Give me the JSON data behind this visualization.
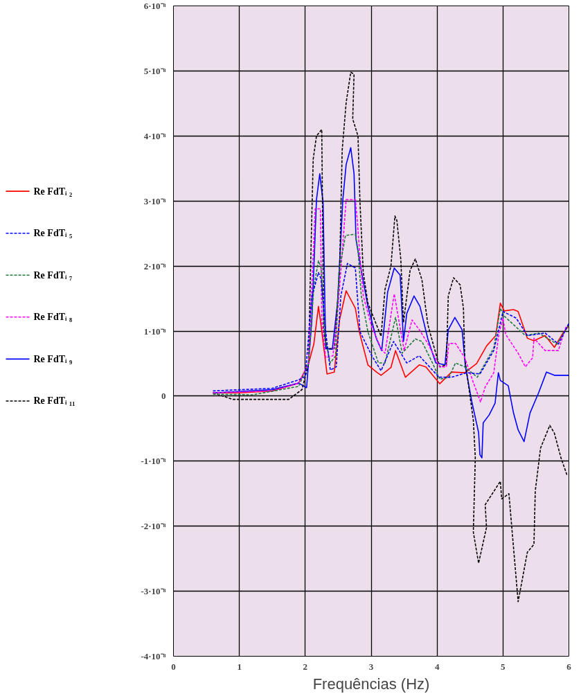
{
  "chart_data": {
    "type": "line",
    "xlabel": "Frequências (Hz)",
    "xlim": [
      0,
      6
    ],
    "xticks": [
      0,
      1,
      2,
      3,
      4,
      5,
      6
    ],
    "ylim": [
      -4e-08,
      6e-08
    ],
    "yticks": [
      {
        "value": 6e-08,
        "label": "6·10⁻⁸"
      },
      {
        "value": 5e-08,
        "label": "5·10⁻⁸"
      },
      {
        "value": 4e-08,
        "label": "4·10⁻⁸"
      },
      {
        "value": 3e-08,
        "label": "3·10⁻⁸"
      },
      {
        "value": 2e-08,
        "label": "2·10⁻⁸"
      },
      {
        "value": 1e-08,
        "label": "1·10⁻⁸"
      },
      {
        "value": 0,
        "label": "0"
      },
      {
        "value": -1e-08,
        "label": "-1·10⁻⁸"
      },
      {
        "value": -2e-08,
        "label": "-2·10⁻⁸"
      },
      {
        "value": -3e-08,
        "label": "-3·10⁻⁸"
      },
      {
        "value": -4e-08,
        "label": "-4·10⁻⁸"
      }
    ],
    "grid": true,
    "legend": "left",
    "marker": "none",
    "series": [
      {
        "name": "Re FdTᵢ ₂",
        "color": "#ff0000",
        "line_style": "solid",
        "x": [
          0.6,
          1.0,
          1.5,
          1.9,
          2.05,
          2.13,
          2.2,
          2.23,
          2.33,
          2.44,
          2.52,
          2.62,
          2.76,
          2.82,
          2.95,
          3.08,
          3.15,
          3.3,
          3.37,
          3.52,
          3.73,
          3.83,
          4.04,
          4.22,
          4.42,
          4.6,
          4.75,
          4.89,
          4.96,
          5.02,
          5.16,
          5.23,
          5.37,
          5.47,
          5.64,
          5.78,
          5.91,
          6.0
        ],
        "values": [
          5e-10,
          5e-10,
          8e-10,
          2e-09,
          5e-09,
          8e-09,
          1.38e-08,
          1.17e-08,
          3.4e-09,
          3.7e-09,
          1.17e-08,
          1.62e-08,
          1.35e-08,
          9.9e-09,
          4.8e-09,
          3.7e-09,
          3.2e-09,
          4.4e-09,
          7e-09,
          2.9e-09,
          4.8e-09,
          4.5e-09,
          1.9e-09,
          3.7e-09,
          3.6e-09,
          5e-09,
          7.7e-09,
          9.3e-09,
          1.43e-08,
          1.31e-08,
          1.33e-08,
          1.3e-08,
          8.9e-09,
          8.5e-09,
          9.3e-09,
          7.5e-09,
          9.7e-09,
          1.08e-08
        ]
      },
      {
        "name": "Re FdTᵢ ₅",
        "color": "#0000ff",
        "line_style": "dashed",
        "x": [
          0.6,
          1.5,
          1.9,
          2.0,
          2.1,
          2.2,
          2.24,
          2.31,
          2.38,
          2.47,
          2.54,
          2.64,
          2.76,
          2.83,
          3.01,
          3.15,
          3.34,
          3.54,
          3.73,
          4.03,
          4.22,
          4.45,
          4.65,
          4.86,
          5.0,
          5.2,
          5.37,
          5.64,
          5.84,
          6.0
        ],
        "values": [
          8e-10,
          1.2e-09,
          2.5e-09,
          3e-09,
          1.53e-08,
          1.9e-08,
          1.8e-08,
          9.9e-09,
          4e-09,
          4.5e-09,
          1.54e-08,
          2.04e-08,
          1.97e-08,
          9.9e-09,
          6.2e-09,
          3.9e-09,
          8.4e-09,
          5.1e-09,
          6.2e-09,
          2.9e-09,
          2.9e-09,
          3.6e-09,
          3.4e-09,
          7e-09,
          1.3e-08,
          1.2e-08,
          9.3e-09,
          9.7e-09,
          8e-09,
          1.12e-08
        ]
      },
      {
        "name": "Re FdTᵢ ₇",
        "color": "#1e7a3c",
        "line_style": "dashed",
        "x": [
          0.6,
          1.2,
          1.9,
          2.05,
          2.13,
          2.2,
          2.24,
          2.3,
          2.38,
          2.46,
          2.51,
          2.61,
          2.76,
          2.8,
          2.85,
          2.95,
          3.11,
          3.21,
          3.37,
          3.47,
          3.67,
          3.77,
          3.93,
          4.04,
          4.18,
          4.28,
          4.42,
          4.61,
          4.86,
          4.96,
          5.02,
          5.34,
          5.54,
          5.82,
          6.0
        ],
        "values": [
          3e-10,
          2e-10,
          1.5e-09,
          5e-09,
          1.68e-08,
          2.08e-08,
          1.97e-08,
          8.8e-09,
          5.1e-09,
          6.2e-09,
          1.9e-08,
          2.47e-08,
          2.49e-08,
          2.25e-08,
          1.54e-08,
          9.9e-09,
          5.1e-09,
          5.1e-09,
          1.21e-08,
          6.6e-09,
          8.8e-09,
          8.4e-09,
          5.1e-09,
          2.6e-09,
          2.9e-09,
          5.1e-09,
          4.5e-09,
          2.9e-09,
          7.4e-09,
          1.35e-08,
          1.23e-08,
          9.3e-09,
          9.7e-09,
          8e-09,
          1.1e-08
        ]
      },
      {
        "name": "Re FdTᵢ ₈",
        "color": "#ff00ff",
        "line_style": "dashed",
        "x": [
          0.6,
          1.5,
          1.9,
          2.05,
          2.15,
          2.23,
          2.25,
          2.31,
          2.42,
          2.49,
          2.62,
          2.76,
          2.79,
          2.83,
          2.88,
          3.01,
          3.15,
          3.21,
          3.35,
          3.5,
          3.62,
          3.73,
          3.86,
          4.04,
          4.14,
          4.18,
          4.28,
          4.42,
          4.55,
          4.66,
          4.73,
          4.86,
          4.94,
          5.0,
          5.04,
          5.23,
          5.34,
          5.45,
          5.47,
          5.64,
          5.84,
          5.95,
          6.0
        ],
        "values": [
          5e-10,
          8e-10,
          2e-09,
          5e-09,
          2.88e-08,
          2.88e-08,
          1.17e-08,
          5.9e-09,
          6.2e-09,
          1.27e-08,
          3.02e-08,
          3.02e-08,
          2.69e-08,
          2.15e-08,
          1.54e-08,
          1.06e-08,
          7.3e-09,
          6.6e-09,
          1.57e-08,
          7e-09,
          1.17e-08,
          1.02e-08,
          8.1e-09,
          4.5e-09,
          4.5e-09,
          8.1e-09,
          8.1e-09,
          5.9e-09,
          2.1e-09,
          -9e-10,
          1.4e-09,
          3.6e-09,
          9.7e-09,
          1.2e-08,
          9.5e-09,
          6.6e-09,
          4.5e-09,
          5.9e-09,
          8.9e-09,
          7e-09,
          7e-09,
          1.05e-08,
          1.1e-08
        ]
      },
      {
        "name": "Re FdTᵢ ₉",
        "color": "#0000ff",
        "line_style": "solid",
        "x": [
          0.6,
          1.5,
          1.9,
          2.02,
          2.1,
          2.17,
          2.22,
          2.27,
          2.31,
          2.41,
          2.49,
          2.57,
          2.62,
          2.69,
          2.74,
          2.77,
          2.85,
          2.95,
          3.08,
          3.16,
          3.25,
          3.35,
          3.44,
          3.49,
          3.54,
          3.65,
          3.74,
          3.86,
          3.98,
          4.12,
          4.17,
          4.27,
          4.38,
          4.43,
          4.53,
          4.63,
          4.65,
          4.68,
          4.7,
          4.79,
          4.88,
          4.93,
          4.96,
          5.08,
          5.16,
          5.23,
          5.32,
          5.41,
          5.54,
          5.66,
          5.78,
          6.0
        ],
        "values": [
          5e-10,
          1e-09,
          2e-09,
          1.3e-09,
          1.17e-08,
          3.02e-08,
          3.42e-08,
          2.98e-08,
          7.3e-09,
          7.2e-09,
          1.43e-08,
          3.02e-08,
          3.56e-08,
          3.82e-08,
          3.42e-08,
          2.41e-08,
          1.93e-08,
          1.38e-08,
          8.8e-09,
          7e-09,
          1.6e-08,
          1.97e-08,
          1.86e-08,
          8.4e-09,
          1.27e-08,
          1.54e-08,
          1.38e-08,
          8.8e-09,
          5.1e-09,
          4.8e-09,
          1.02e-08,
          1.21e-08,
          1.02e-08,
          4.5e-09,
          -1e-09,
          -5.6e-09,
          -9e-09,
          -9.5e-09,
          -4.1e-09,
          -2.9e-09,
          -1.1e-09,
          3.6e-09,
          2.4e-09,
          1.6e-09,
          -2.6e-09,
          -5.2e-09,
          -7e-09,
          -2.6e-09,
          5e-10,
          3.7e-09,
          3.2e-09,
          3.2e-09
        ]
      },
      {
        "name": "Re FdTᵢ ₁₁",
        "color": "#000000",
        "line_style": "dashed",
        "x": [
          0.6,
          0.9,
          1.75,
          1.95,
          2.05,
          2.07,
          2.12,
          2.17,
          2.25,
          2.28,
          2.33,
          2.44,
          2.52,
          2.56,
          2.62,
          2.69,
          2.74,
          2.72,
          2.8,
          2.83,
          2.88,
          2.95,
          3.15,
          3.21,
          3.3,
          3.36,
          3.39,
          3.45,
          3.49,
          3.59,
          3.67,
          3.77,
          3.86,
          3.96,
          4.04,
          4.14,
          4.17,
          4.25,
          4.35,
          4.4,
          4.42,
          4.55,
          4.58,
          4.55,
          4.63,
          4.75,
          4.73,
          4.8,
          4.96,
          4.98,
          5.09,
          5.23,
          5.37,
          5.47,
          5.49,
          5.57,
          5.71,
          5.78,
          5.88,
          5.97
        ],
        "values": [
          5e-10,
          -5e-10,
          -5e-10,
          1e-09,
          5e-09,
          1.53e-08,
          3.64e-08,
          4e-08,
          4.1e-08,
          9.9e-09,
          7.3e-09,
          7.3e-09,
          1.9e-08,
          3.78e-08,
          4.51e-08,
          4.98e-08,
          4.95e-08,
          4.26e-08,
          4e-08,
          2.98e-08,
          1.9e-08,
          1.43e-08,
          9.2e-09,
          1.64e-08,
          2e-08,
          2.77e-08,
          2.7e-08,
          2.1e-08,
          1.13e-08,
          1.93e-08,
          2.11e-08,
          1.79e-08,
          1.1e-08,
          7.3e-09,
          4.5e-09,
          4.8e-09,
          1.54e-08,
          1.82e-08,
          1.71e-08,
          1.35e-08,
          5.9e-09,
          -3.7e-09,
          -9.5e-09,
          -2.09e-08,
          -2.57e-08,
          -2.02e-08,
          -1.67e-08,
          -1.56e-08,
          -1.31e-08,
          -1.58e-08,
          -1.5e-08,
          -3.16e-08,
          -2.4e-08,
          -2.28e-08,
          -1.46e-08,
          -8e-09,
          -4.5e-09,
          -5.7e-09,
          -9.5e-09,
          -1.21e-08
        ]
      }
    ]
  }
}
